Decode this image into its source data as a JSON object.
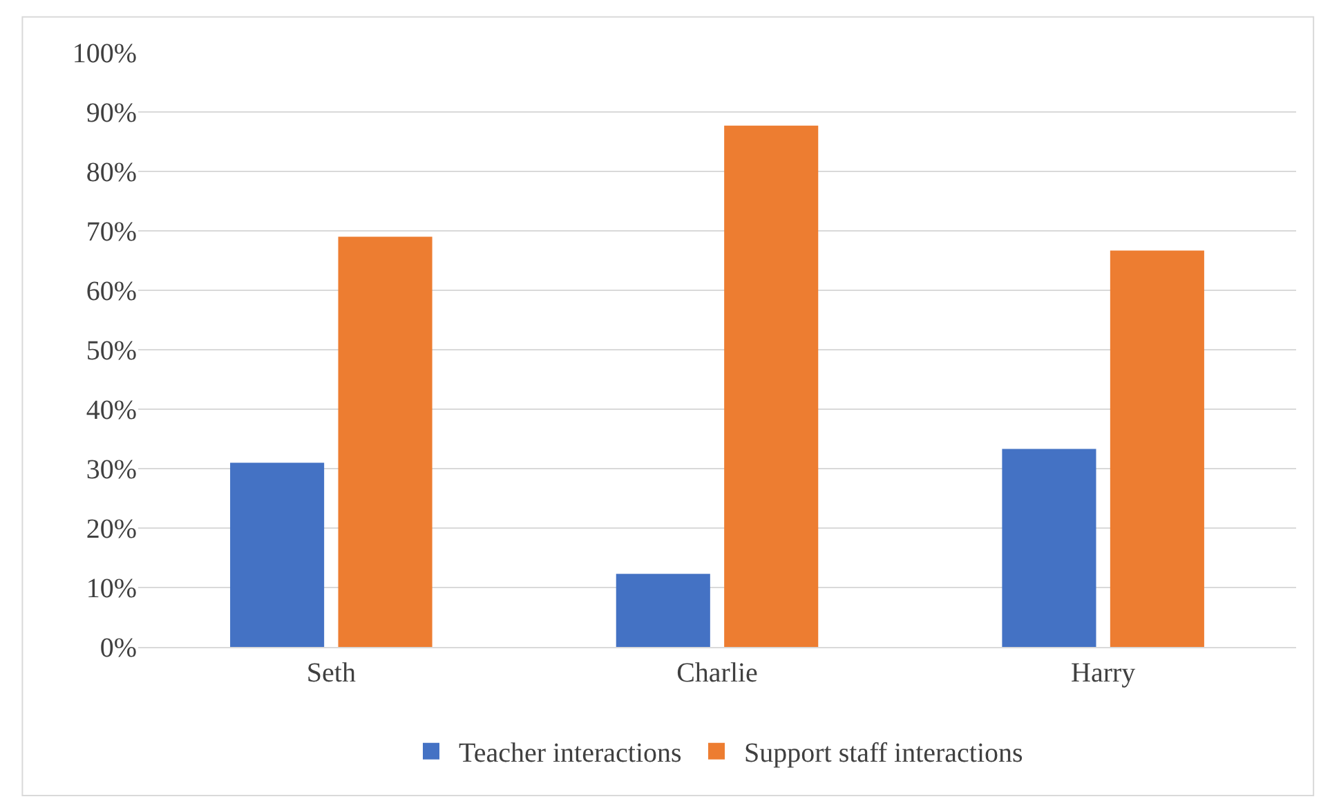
{
  "chart_data": {
    "type": "bar",
    "categories": [
      "Seth",
      "Charlie",
      "Harry"
    ],
    "series": [
      {
        "name": "Teacher interactions",
        "color": "#4472c4",
        "values": [
          31,
          12.3,
          33.3
        ]
      },
      {
        "name": "Support staff interactions",
        "color": "#ed7d31",
        "values": [
          69,
          87.7,
          66.7
        ]
      }
    ],
    "ylim": [
      0,
      100
    ],
    "yticks": [
      {
        "value": 0,
        "label": "0%"
      },
      {
        "value": 10,
        "label": "10%"
      },
      {
        "value": 20,
        "label": "20%"
      },
      {
        "value": 30,
        "label": "30%"
      },
      {
        "value": 40,
        "label": "40%"
      },
      {
        "value": 50,
        "label": "50%"
      },
      {
        "value": 60,
        "label": "60%"
      },
      {
        "value": 70,
        "label": "70%"
      },
      {
        "value": 80,
        "label": "80%"
      },
      {
        "value": 90,
        "label": "90%"
      },
      {
        "value": 100,
        "label": "100%"
      }
    ],
    "grid": "y",
    "legend": "bottom"
  }
}
